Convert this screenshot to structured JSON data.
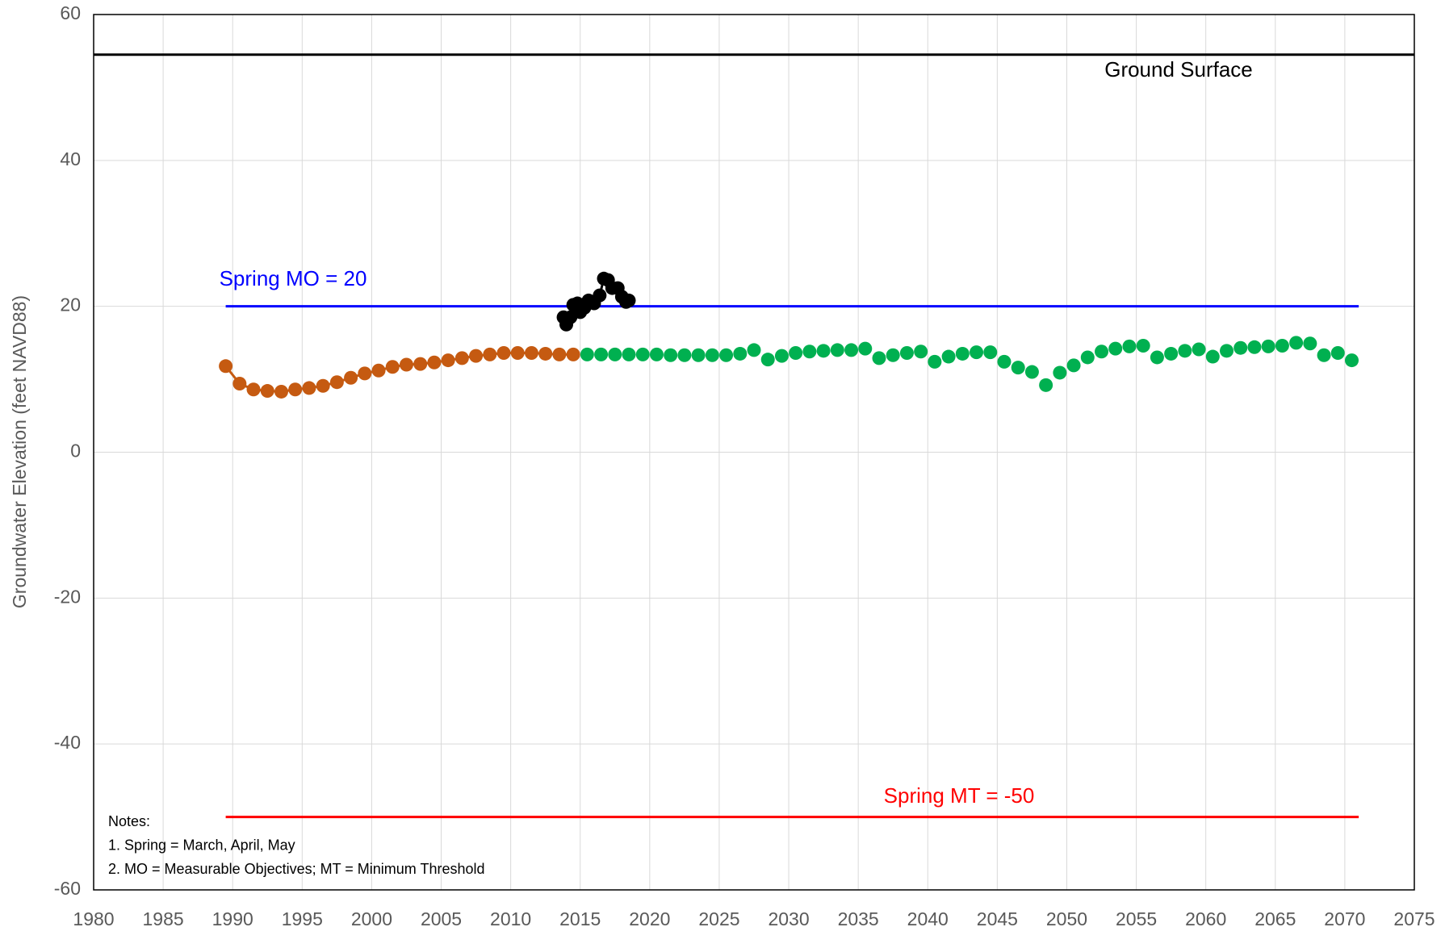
{
  "chart_data": {
    "type": "scatter",
    "y_label": "Groundwater Elevation (feet NAVD88)",
    "xlim": [
      1980,
      2075
    ],
    "xticks": [
      1980,
      1985,
      1990,
      1995,
      2000,
      2005,
      2010,
      2015,
      2020,
      2025,
      2030,
      2035,
      2040,
      2045,
      2050,
      2055,
      2060,
      2065,
      2070,
      2075
    ],
    "ylim": [
      -60,
      60
    ],
    "yticks": [
      -60,
      -40,
      -20,
      0,
      20,
      40,
      60
    ],
    "grid": true,
    "reference_lines": [
      {
        "label": "Ground Surface",
        "value": 54.5,
        "color": "#000000",
        "x": [
          1980,
          2075
        ]
      },
      {
        "label": "Spring MO = 20",
        "value": 20,
        "color": "#0000ff",
        "x": [
          1989.5,
          2071
        ]
      },
      {
        "label": "Spring MT = -50",
        "value": -50,
        "color": "#ff0000",
        "x": [
          1989.5,
          2071
        ]
      }
    ],
    "series": [
      {
        "color": "#c55a11",
        "line": true,
        "x": [
          1989.5,
          1990.5,
          1991.5,
          1992.5,
          1993.5,
          1994.5,
          1995.5,
          1996.5,
          1997.5,
          1998.5,
          1999.5,
          2000.5,
          2001.5,
          2002.5,
          2003.5,
          2004.5,
          2005.5,
          2006.5,
          2007.5,
          2008.5,
          2009.5,
          2010.5,
          2011.5,
          2012.5,
          2013.5,
          2014.5
        ],
        "values": [
          11.8,
          9.4,
          8.6,
          8.4,
          8.3,
          8.6,
          8.8,
          9.1,
          9.6,
          10.2,
          10.8,
          11.2,
          11.7,
          12.0,
          12.1,
          12.3,
          12.6,
          12.9,
          13.2,
          13.4,
          13.6,
          13.6,
          13.6,
          13.5,
          13.4,
          13.4
        ]
      },
      {
        "color": "#00b050",
        "line": false,
        "x": [
          2015.5,
          2016.5,
          2017.5,
          2018.5,
          2019.5,
          2020.5,
          2021.5,
          2022.5,
          2023.5,
          2024.5,
          2025.5,
          2026.5,
          2027.5,
          2028.5,
          2029.5,
          2030.5,
          2031.5,
          2032.5,
          2033.5,
          2034.5,
          2035.5,
          2036.5,
          2037.5,
          2038.5,
          2039.5,
          2040.5,
          2041.5,
          2042.5,
          2043.5,
          2044.5,
          2045.5,
          2046.5,
          2047.5,
          2048.5,
          2049.5,
          2050.5,
          2051.5,
          2052.5,
          2053.5,
          2054.5,
          2055.5,
          2056.5,
          2057.5,
          2058.5,
          2059.5,
          2060.5,
          2061.5,
          2062.5,
          2063.5,
          2064.5,
          2065.5,
          2066.5,
          2067.5,
          2068.5,
          2069.5,
          2070.5
        ],
        "values": [
          13.4,
          13.4,
          13.4,
          13.4,
          13.4,
          13.4,
          13.3,
          13.3,
          13.3,
          13.3,
          13.3,
          13.5,
          14.0,
          12.7,
          13.2,
          13.6,
          13.8,
          13.9,
          14.0,
          14.0,
          14.2,
          12.9,
          13.3,
          13.6,
          13.8,
          12.4,
          13.1,
          13.5,
          13.7,
          13.7,
          12.4,
          11.6,
          11.0,
          9.2,
          10.9,
          11.9,
          13.0,
          13.8,
          14.2,
          14.5,
          14.6,
          13.0,
          13.5,
          13.9,
          14.1,
          13.1,
          13.9,
          14.3,
          14.4,
          14.5,
          14.6,
          15.0,
          14.9,
          13.3,
          13.6,
          12.6
        ]
      },
      {
        "color": "#000000",
        "line": true,
        "x": [
          2013.8,
          2014.0,
          2014.3,
          2014.5,
          2014.8,
          2015.0,
          2015.3,
          2015.6,
          2016.0,
          2016.4,
          2016.7,
          2017.0,
          2017.3,
          2017.7,
          2018.0,
          2018.3,
          2018.5
        ],
        "values": [
          18.5,
          17.5,
          18.5,
          20.2,
          20.4,
          19.2,
          19.8,
          20.8,
          20.4,
          21.5,
          23.8,
          23.6,
          22.5,
          22.5,
          21.3,
          20.6,
          20.8
        ]
      }
    ],
    "notes": [
      "Notes:",
      "1. Spring = March, April, May",
      "2. MO = Measurable Objectives;  MT = Minimum Threshold"
    ]
  }
}
